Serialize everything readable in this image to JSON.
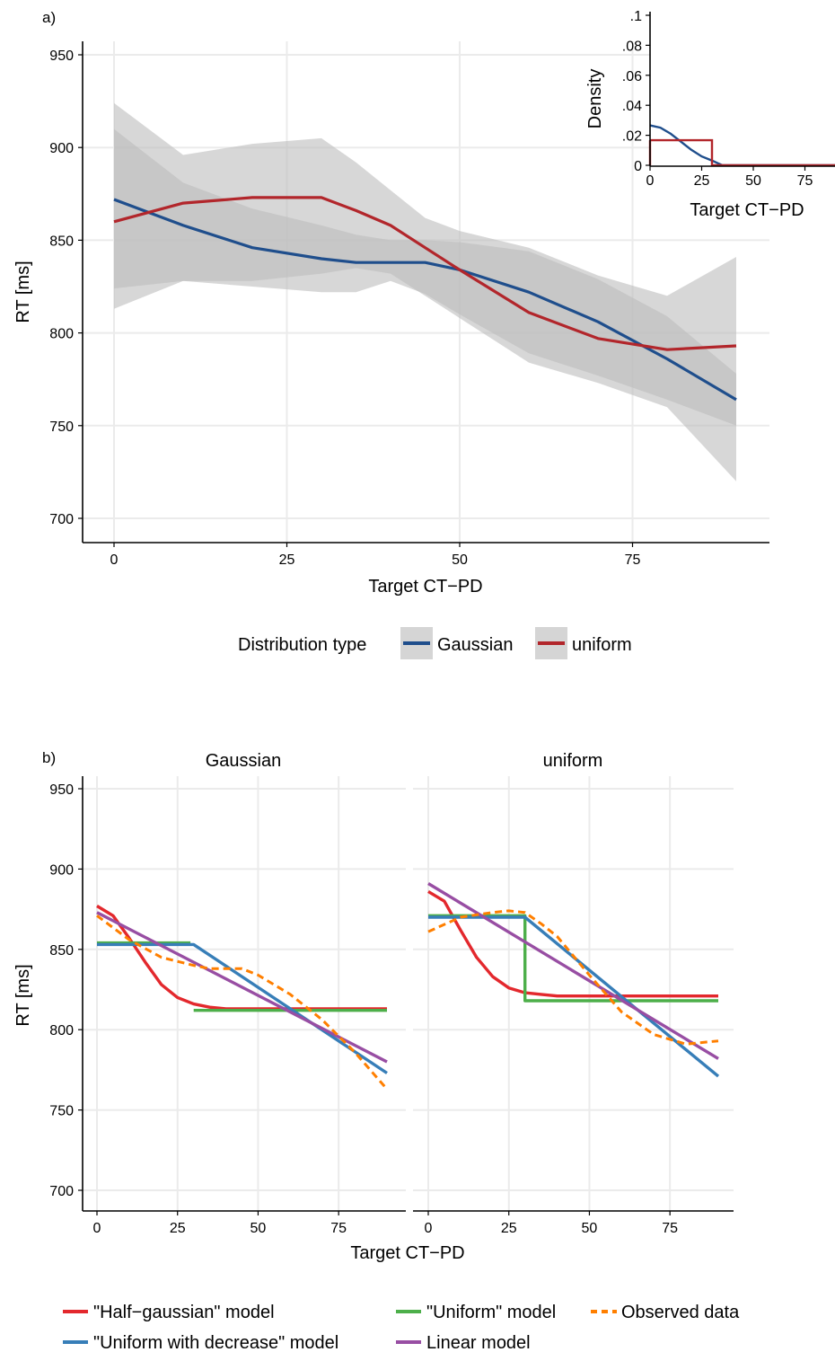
{
  "panel_a": {
    "tag": "a)",
    "ylabel": "RT [ms]",
    "xlabel": "Target CT−PD",
    "xticks": [
      "0",
      "25",
      "50",
      "75"
    ],
    "yticks": [
      "700",
      "750",
      "800",
      "850",
      "900",
      "950"
    ],
    "legend_title": "Distribution type",
    "legend_items": [
      "Gaussian",
      "uniform"
    ],
    "inset": {
      "ylabel": "Density",
      "xlabel": "Target CT−PD",
      "xticks": [
        "0",
        "25",
        "50",
        "75"
      ],
      "yticks": [
        "0",
        ".02",
        ".04",
        ".06",
        ".08",
        ".1"
      ]
    }
  },
  "panel_b": {
    "tag": "b)",
    "ylabel": "RT [ms]",
    "xlabel": "Target CT−PD",
    "facets": [
      "Gaussian",
      "uniform"
    ],
    "xticks": [
      "0",
      "25",
      "50",
      "75"
    ],
    "yticks": [
      "700",
      "750",
      "800",
      "850",
      "900",
      "950"
    ],
    "legend_items": [
      "\"Half−gaussian\" model",
      "\"Uniform\" model",
      "Observed data",
      "\"Uniform with decrease\" model",
      "Linear model"
    ]
  },
  "colors": {
    "gaussian": "#1f4e8c",
    "uniform": "#b2262b",
    "ribbon": "#bdbdbd",
    "half_gaussian": "#e3282d",
    "uniform_model": "#4daf4a",
    "observed": "#ff7f00",
    "uniform_decrease": "#377eb8",
    "linear": "#984ea3",
    "grid": "#ebebeb"
  },
  "chart_data": [
    {
      "type": "line",
      "panel": "a",
      "xlim": [
        -9,
        189
      ],
      "ylim": [
        688,
        955
      ],
      "x": [
        0,
        10,
        20,
        30,
        35,
        40,
        45,
        50,
        60,
        70,
        80,
        90
      ],
      "series": [
        {
          "name": "Gaussian",
          "values": [
            872,
            858,
            846,
            840,
            838,
            838,
            838,
            834,
            822,
            806,
            786,
            764
          ],
          "ci_lower": [
            824,
            828,
            825,
            822,
            822,
            828,
            821,
            810,
            789,
            777,
            764,
            750
          ],
          "ci_upper": [
            910,
            881,
            867,
            858,
            853,
            850,
            850,
            849,
            844,
            829,
            809,
            778
          ]
        },
        {
          "name": "uniform",
          "values": [
            860,
            870,
            873,
            873,
            866,
            858,
            846,
            834,
            811,
            797,
            791,
            793
          ],
          "ci_lower": [
            813,
            828,
            828,
            832,
            835,
            832,
            820,
            808,
            784,
            773,
            760,
            720
          ],
          "ci_upper": [
            924,
            896,
            902,
            905,
            892,
            877,
            862,
            855,
            846,
            831,
            820,
            841
          ]
        }
      ]
    },
    {
      "type": "line",
      "panel": "a-inset",
      "ylabel": "Density",
      "xlim": [
        0,
        90
      ],
      "ylim": [
        0,
        0.1
      ],
      "series": [
        {
          "name": "Gaussian",
          "x": [
            0,
            5,
            10,
            15,
            20,
            25,
            30,
            35,
            40,
            50,
            60,
            75,
            90
          ],
          "values": [
            0.0266,
            0.0251,
            0.021,
            0.0157,
            0.0103,
            0.0059,
            0.0032,
            0.0,
            0.0,
            0.0,
            0.0,
            0.0,
            0.0
          ]
        },
        {
          "name": "uniform",
          "x": [
            0,
            30,
            30,
            90
          ],
          "values": [
            0.0167,
            0.0167,
            0.0,
            0.0
          ]
        }
      ]
    },
    {
      "type": "line",
      "panel": "b",
      "facet": "Gaussian",
      "xlim": [
        -4,
        94
      ],
      "ylim": [
        689,
        955
      ],
      "series": [
        {
          "name": "\"Half−gaussian\" model",
          "x": [
            0,
            5,
            10,
            15,
            20,
            25,
            30,
            35,
            40,
            50,
            60,
            75,
            90
          ],
          "values": [
            877,
            871,
            857,
            842,
            828,
            820,
            816,
            814,
            813,
            813,
            813,
            813,
            813
          ]
        },
        {
          "name": "\"Uniform\" model",
          "x": [
            0,
            29,
            30,
            30,
            90
          ],
          "values": [
            854,
            854,
            null,
            812,
            812
          ]
        },
        {
          "name": "\"Uniform with decrease\" model",
          "x": [
            0,
            30,
            90
          ],
          "values": [
            853,
            853,
            773
          ]
        },
        {
          "name": "Linear model",
          "x": [
            0,
            90
          ],
          "values": [
            873,
            780
          ]
        },
        {
          "name": "Observed data",
          "x": [
            0,
            10,
            20,
            30,
            35,
            40,
            45,
            50,
            60,
            70,
            80,
            90
          ],
          "values": [
            871,
            856,
            845,
            840,
            838,
            838,
            838,
            834,
            822,
            806,
            786,
            763
          ]
        }
      ]
    },
    {
      "type": "line",
      "panel": "b",
      "facet": "uniform",
      "xlim": [
        -4,
        94
      ],
      "ylim": [
        689,
        955
      ],
      "series": [
        {
          "name": "\"Half−gaussian\" model",
          "x": [
            0,
            5,
            10,
            15,
            20,
            25,
            30,
            35,
            40,
            50,
            60,
            75,
            90
          ],
          "values": [
            886,
            880,
            862,
            845,
            833,
            826,
            823,
            822,
            821,
            821,
            821,
            821,
            821
          ]
        },
        {
          "name": "\"Uniform\" model",
          "x": [
            0,
            30,
            30,
            90
          ],
          "values": [
            871,
            871,
            818,
            818
          ]
        },
        {
          "name": "\"Uniform with decrease\" model",
          "x": [
            0,
            30,
            90
          ],
          "values": [
            870,
            870,
            771
          ]
        },
        {
          "name": "Linear model",
          "x": [
            0,
            90
          ],
          "values": [
            891,
            782
          ]
        },
        {
          "name": "Observed data",
          "x": [
            0,
            10,
            20,
            25,
            30,
            35,
            40,
            45,
            50,
            60,
            70,
            80,
            90
          ],
          "values": [
            861,
            870,
            873,
            874,
            873,
            866,
            858,
            846,
            834,
            811,
            797,
            791,
            793
          ]
        }
      ]
    }
  ]
}
